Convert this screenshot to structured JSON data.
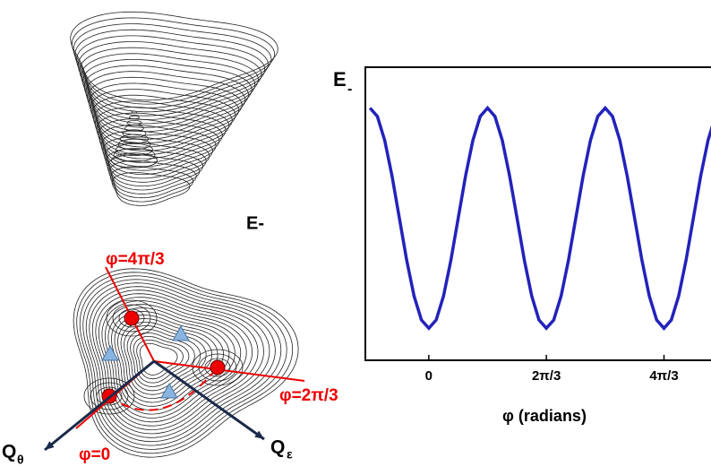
{
  "chart_data": {
    "type": "line",
    "ylabel": "E",
    "ylabel_sub": "-",
    "xlabel": "φ (radians)",
    "x": [
      -1.047,
      -0.916,
      -0.785,
      -0.654,
      -0.524,
      -0.393,
      -0.262,
      -0.131,
      0,
      0.131,
      0.262,
      0.393,
      0.524,
      0.654,
      0.785,
      0.916,
      1.047,
      1.178,
      1.309,
      1.44,
      1.571,
      1.702,
      1.833,
      1.963,
      2.094,
      2.225,
      2.356,
      2.487,
      2.618,
      2.749,
      2.88,
      3.011,
      3.142,
      3.272,
      3.403,
      3.534,
      3.665,
      3.796,
      3.927,
      4.058,
      4.189,
      4.32,
      4.451,
      4.581,
      4.712,
      4.843,
      4.974,
      5.105
    ],
    "series": [
      {
        "color": "#2222bb",
        "values": [
          1,
          0.924,
          0.707,
          0.383,
          0,
          -0.383,
          -0.707,
          -0.924,
          -1,
          -0.924,
          -0.707,
          -0.383,
          0,
          0.383,
          0.707,
          0.924,
          1,
          0.924,
          0.707,
          0.383,
          0,
          -0.383,
          -0.707,
          -0.924,
          -1,
          -0.924,
          -0.707,
          -0.383,
          0,
          0.383,
          0.707,
          0.924,
          1,
          0.924,
          0.707,
          0.383,
          0,
          -0.383,
          -0.707,
          -0.924,
          -1,
          -0.924,
          -0.707,
          -0.383,
          0,
          0.383,
          0.707,
          0.924
        ]
      }
    ],
    "xlim": [
      -1.13,
      5.09
    ],
    "ylim": [
      -1.29,
      1.37
    ],
    "xticks": [
      0,
      {
        "value": 2.094,
        "label": "2π/3"
      },
      {
        "value": 4.189,
        "label": "4π/3"
      }
    ]
  },
  "diagram": {
    "surface_label": "E-",
    "phi_labels": [
      "φ=4π/3",
      "φ=2π/3",
      "φ=0"
    ],
    "axes": [
      {
        "text": "Q",
        "sub": "θ"
      },
      {
        "text": "Q",
        "sub": "ε"
      }
    ]
  }
}
